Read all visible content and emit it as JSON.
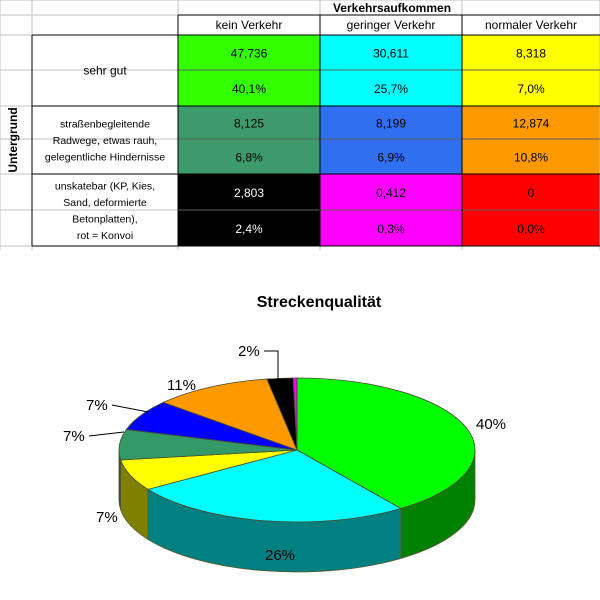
{
  "table": {
    "header": "Verkehrsaufkommen",
    "columns": [
      "kein Verkehr",
      "geringer Verkehr",
      "normaler Verkehr"
    ],
    "row_axis_label": "Untergrund",
    "groups": [
      {
        "label_lines": [
          "sehr gut"
        ],
        "rows": [
          [
            {
              "text": "47,736",
              "bg": "#33ff00"
            },
            {
              "text": "30,611",
              "bg": "#00ffff"
            },
            {
              "text": "8,318",
              "bg": "#ffff00"
            }
          ],
          [
            {
              "text": "40,1%",
              "bg": "#33ff00"
            },
            {
              "text": "25,7%",
              "bg": "#00ffff"
            },
            {
              "text": "7,0%",
              "bg": "#ffff00"
            }
          ]
        ]
      },
      {
        "label_lines": [
          "straßenbegleitende",
          "Radwege, etwas rauh,",
          "gelegentliche Hindernisse"
        ],
        "rows": [
          [
            {
              "text": "8,125",
              "bg": "#3c9a6b"
            },
            {
              "text": "8,199",
              "bg": "#2f6ff0"
            },
            {
              "text": "12,874",
              "bg": "#ff9900"
            }
          ],
          [
            {
              "text": "6,8%",
              "bg": "#3c9a6b"
            },
            {
              "text": "6,9%",
              "bg": "#2f6ff0"
            },
            {
              "text": "10,8%",
              "bg": "#ff9900"
            }
          ]
        ]
      },
      {
        "label_lines": [
          "unskatebar (KP, Kies,",
          "Sand, deformierte",
          "Betonplatten),",
          "rot = Konvoi"
        ],
        "rows": [
          [
            {
              "text": "2,803",
              "bg": "#000000",
              "fg": "#ffffff"
            },
            {
              "text": "0,412",
              "bg": "#ff00ff"
            },
            {
              "text": "0",
              "bg": "#ff0000"
            }
          ],
          [
            {
              "text": "2,4%",
              "bg": "#000000",
              "fg": "#ffffff"
            },
            {
              "text": "0,3%",
              "bg": "#ff00ff"
            },
            {
              "text": "0,0%",
              "bg": "#ff0000"
            }
          ]
        ]
      }
    ]
  },
  "chart_data": {
    "type": "pie",
    "title": "Streckenqualität",
    "slices": [
      {
        "value": 47.736,
        "label": "40%",
        "color": "#00ff00"
      },
      {
        "value": 30.611,
        "label": "26%",
        "color": "#00ffff"
      },
      {
        "value": 8.318,
        "label": "7%",
        "color": "#ffff00"
      },
      {
        "value": 8.125,
        "label": "7%",
        "color": "#339966"
      },
      {
        "value": 8.199,
        "label": "7%",
        "color": "#0000ff"
      },
      {
        "value": 12.874,
        "label": "11%",
        "color": "#ff9900"
      },
      {
        "value": 2.803,
        "label": "2%",
        "color": "#000000"
      },
      {
        "value": 0.412,
        "label": "",
        "color": "#ff00ff"
      },
      {
        "value": 0.0001,
        "label": "",
        "color": "#ff0000"
      }
    ],
    "style": "3d",
    "legend": "none"
  }
}
